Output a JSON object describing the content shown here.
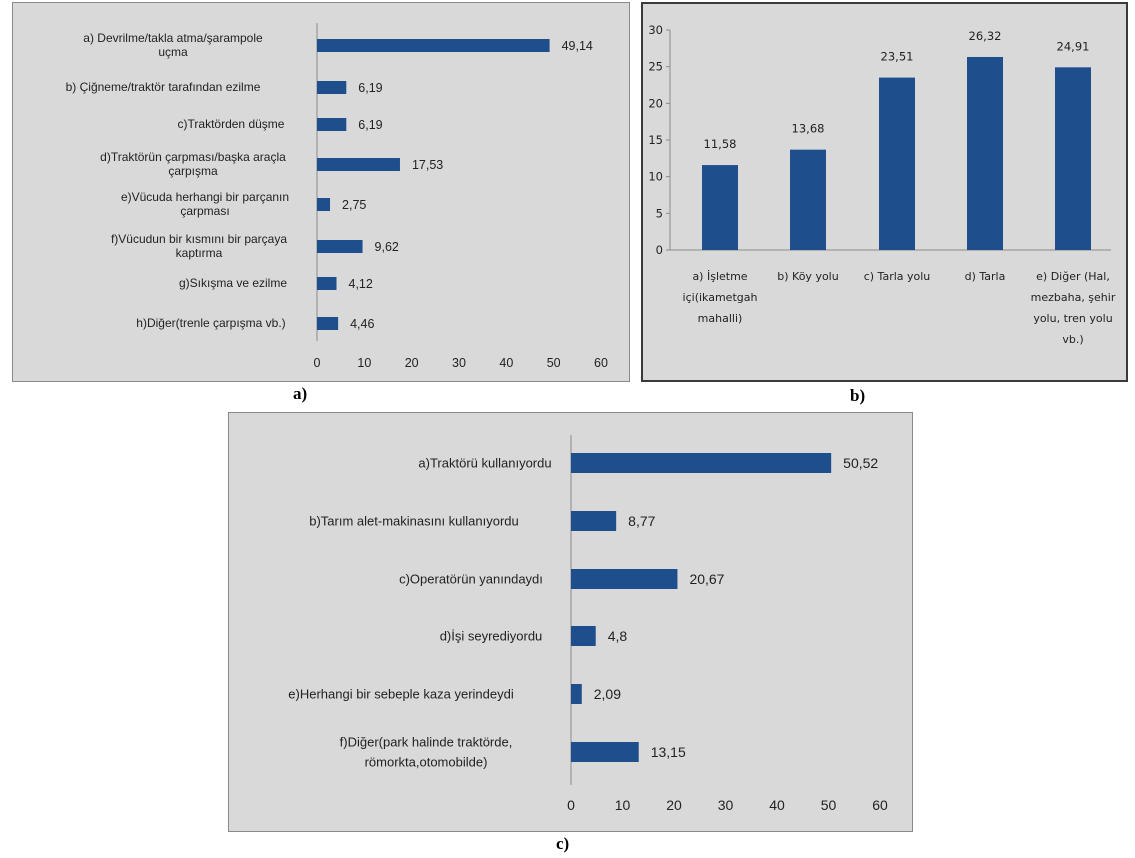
{
  "captions": {
    "a": "a)",
    "b": "b)",
    "c": "c)"
  },
  "colors": {
    "bar": "#1f4e8c",
    "panel_bg": "#d9d9d9",
    "axis": "#8a8a8a"
  },
  "chart_data": [
    {
      "id": "a",
      "type": "bar",
      "orientation": "horizontal",
      "categories": [
        "a) Devrilme/takla atma/şarampole uçma",
        "b) Çiğneme/traktör tarafından ezilme",
        "c)Traktörden düşme",
        "d)Traktörün çarpması/başka araçla çarpışma",
        "e)Vücuda herhangi bir parçanın çarpması",
        "f)Vücudun bir kısmını bir parçaya kaptırma",
        "g)Sıkışma ve ezilme",
        "h)Diğer(trenle çarpışma vb.)"
      ],
      "values": [
        49.14,
        6.19,
        6.19,
        17.53,
        2.75,
        9.62,
        4.12,
        4.46
      ],
      "value_labels": [
        "49,14",
        "6,19",
        "6,19",
        "17,53",
        "2,75",
        "9,62",
        "4,12",
        "4,46"
      ],
      "xlim": [
        0,
        60
      ],
      "xticks": [
        "0",
        "10",
        "20",
        "30",
        "40",
        "50",
        "60"
      ],
      "grid": false
    },
    {
      "id": "b",
      "type": "bar",
      "orientation": "vertical",
      "categories": [
        "a) İşletme içi(ikametgah mahalli)",
        "b) Köy yolu",
        "c) Tarla yolu",
        "d) Tarla",
        "e) Diğer (Hal, mezbaha, şehir yolu, tren yolu vb.)"
      ],
      "values": [
        11.58,
        13.68,
        23.51,
        26.32,
        24.91
      ],
      "value_labels": [
        "11,58",
        "13,68",
        "23,51",
        "26,32",
        "24,91"
      ],
      "ylim": [
        0,
        30
      ],
      "yticks": [
        "0",
        "5",
        "10",
        "15",
        "20",
        "25",
        "30"
      ],
      "grid": false
    },
    {
      "id": "c",
      "type": "bar",
      "orientation": "horizontal",
      "categories": [
        "a)Traktörü kullanıyordu",
        "b)Tarım alet-makinasını kullanıyordu",
        "c)Operatörün yanındaydı",
        "d)İşi seyrediyordu",
        "e)Herhangi bir sebeple kaza yerindeydi",
        "f)Diğer(park halinde traktörde, römorkta,otomobilde)"
      ],
      "values": [
        50.52,
        8.77,
        20.67,
        4.8,
        2.09,
        13.15
      ],
      "value_labels": [
        "50,52",
        "8,77",
        "20,67",
        "4,8",
        "2,09",
        "13,15"
      ],
      "xlim": [
        0,
        60
      ],
      "xticks": [
        "0",
        "10",
        "20",
        "30",
        "40",
        "50",
        "60"
      ],
      "grid": false
    }
  ]
}
